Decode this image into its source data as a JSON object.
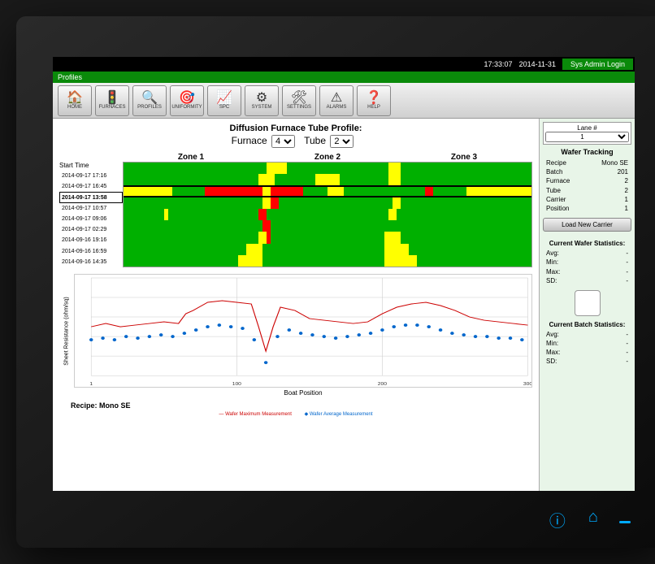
{
  "header": {
    "time": "17:33:07",
    "date": "2014-11-31",
    "login_label": "Sys Admin Login"
  },
  "green_strip": {
    "label": "Profiles"
  },
  "toolbar": [
    {
      "name": "home",
      "label": "HOME",
      "glyph": "🏠"
    },
    {
      "name": "furnaces",
      "label": "FURNACES",
      "glyph": "🚦"
    },
    {
      "name": "profiles",
      "label": "PROFILES",
      "glyph": "🔍"
    },
    {
      "name": "uniformity",
      "label": "UNIFORMITY",
      "glyph": "🎯"
    },
    {
      "name": "spc",
      "label": "SPC",
      "glyph": "📈"
    },
    {
      "name": "system",
      "label": "SYSTEM",
      "glyph": "⚙"
    },
    {
      "name": "settings",
      "label": "SETTINGS",
      "glyph": "🛠"
    },
    {
      "name": "alarms",
      "label": "ALARMS",
      "glyph": "⚠"
    },
    {
      "name": "help",
      "label": "HELP",
      "glyph": "❓"
    }
  ],
  "main": {
    "title": "Diffusion Furnace Tube Profile:",
    "furnace_label": "Furnace",
    "furnace_value": "4",
    "tube_label": "Tube",
    "tube_value": "2",
    "zones": [
      "Zone 1",
      "Zone 2",
      "Zone 3"
    ],
    "start_time_header": "Start Time",
    "times": [
      "2014-09-17 17:16",
      "2014-09-17 16:45",
      "2014-09-17 13:58",
      "2014-09-17 10:57",
      "2014-09-17 09:06",
      "2014-09-17 02:29",
      "2014-09-16 19:16",
      "2014-09-16 16:59",
      "2014-09-16 14:35"
    ],
    "selected_row_index": 2,
    "heatmap": {
      "bg_color": "#00b000",
      "colors": {
        "g": "#00b000",
        "y": "#ffff00",
        "r": "#ff0000"
      },
      "rows": [
        [
          [
            "g",
            35
          ],
          [
            "y",
            5
          ],
          [
            "g",
            25
          ],
          [
            "y",
            3
          ],
          [
            "g",
            32
          ]
        ],
        [
          [
            "g",
            33
          ],
          [
            "y",
            4
          ],
          [
            "g",
            10
          ],
          [
            "y",
            6
          ],
          [
            "g",
            12
          ],
          [
            "y",
            3
          ],
          [
            "g",
            32
          ]
        ],
        [
          [
            "y",
            12
          ],
          [
            "g",
            8
          ],
          [
            "r",
            14
          ],
          [
            "y",
            2
          ],
          [
            "r",
            8
          ],
          [
            "g",
            6
          ],
          [
            "y",
            4
          ],
          [
            "g",
            20
          ],
          [
            "r",
            2
          ],
          [
            "g",
            8
          ],
          [
            "y",
            16
          ]
        ],
        [
          [
            "g",
            34
          ],
          [
            "y",
            2
          ],
          [
            "r",
            2
          ],
          [
            "g",
            28
          ],
          [
            "y",
            2
          ],
          [
            "g",
            32
          ]
        ],
        [
          [
            "g",
            10
          ],
          [
            "y",
            1
          ],
          [
            "g",
            22
          ],
          [
            "r",
            2
          ],
          [
            "g",
            30
          ],
          [
            "y",
            2
          ],
          [
            "g",
            33
          ]
        ],
        [
          [
            "g",
            34
          ],
          [
            "r",
            2
          ],
          [
            "g",
            64
          ]
        ],
        [
          [
            "g",
            33
          ],
          [
            "y",
            2
          ],
          [
            "r",
            1
          ],
          [
            "g",
            28
          ],
          [
            "y",
            4
          ],
          [
            "g",
            32
          ]
        ],
        [
          [
            "g",
            30
          ],
          [
            "y",
            4
          ],
          [
            "g",
            30
          ],
          [
            "y",
            6
          ],
          [
            "g",
            30
          ]
        ],
        [
          [
            "g",
            28
          ],
          [
            "y",
            6
          ],
          [
            "g",
            30
          ],
          [
            "y",
            8
          ],
          [
            "g",
            28
          ]
        ]
      ]
    },
    "chart": {
      "type": "line-scatter",
      "ylabel": "Sheet Resistance (ohm/sq)",
      "xlabel": "Boat Position",
      "xlim": [
        0,
        300
      ],
      "xticks": [
        0,
        100,
        200,
        300
      ],
      "xtick_labels": [
        "1",
        "100",
        "200",
        "300"
      ],
      "ylim": [
        40,
        100
      ],
      "background_color": "#ffffff",
      "grid_color": "#cccccc",
      "series": [
        {
          "name": "Wafer Maximum Measurement",
          "kind": "line",
          "color": "#cc0000",
          "line_width": 1,
          "points": [
            [
              0,
              70
            ],
            [
              10,
              72
            ],
            [
              20,
              70
            ],
            [
              30,
              71
            ],
            [
              40,
              72
            ],
            [
              50,
              73
            ],
            [
              60,
              72
            ],
            [
              65,
              78
            ],
            [
              70,
              80
            ],
            [
              80,
              85
            ],
            [
              90,
              86
            ],
            [
              100,
              85
            ],
            [
              110,
              84
            ],
            [
              115,
              70
            ],
            [
              120,
              55
            ],
            [
              125,
              70
            ],
            [
              130,
              82
            ],
            [
              140,
              80
            ],
            [
              150,
              75
            ],
            [
              160,
              74
            ],
            [
              170,
              73
            ],
            [
              180,
              72
            ],
            [
              190,
              73
            ],
            [
              200,
              78
            ],
            [
              210,
              82
            ],
            [
              220,
              84
            ],
            [
              230,
              85
            ],
            [
              240,
              83
            ],
            [
              250,
              80
            ],
            [
              260,
              76
            ],
            [
              270,
              74
            ],
            [
              280,
              73
            ],
            [
              290,
              72
            ],
            [
              300,
              71
            ]
          ]
        },
        {
          "name": "Wafer Average Measurement",
          "kind": "scatter",
          "color": "#0066cc",
          "marker": "circle",
          "marker_size": 2,
          "points": [
            [
              0,
              62
            ],
            [
              8,
              63
            ],
            [
              16,
              62
            ],
            [
              24,
              64
            ],
            [
              32,
              63
            ],
            [
              40,
              64
            ],
            [
              48,
              65
            ],
            [
              56,
              64
            ],
            [
              64,
              66
            ],
            [
              72,
              68
            ],
            [
              80,
              70
            ],
            [
              88,
              71
            ],
            [
              96,
              70
            ],
            [
              104,
              69
            ],
            [
              112,
              62
            ],
            [
              120,
              48
            ],
            [
              128,
              64
            ],
            [
              136,
              68
            ],
            [
              144,
              66
            ],
            [
              152,
              65
            ],
            [
              160,
              64
            ],
            [
              168,
              63
            ],
            [
              176,
              64
            ],
            [
              184,
              65
            ],
            [
              192,
              66
            ],
            [
              200,
              68
            ],
            [
              208,
              70
            ],
            [
              216,
              71
            ],
            [
              224,
              71
            ],
            [
              232,
              70
            ],
            [
              240,
              68
            ],
            [
              248,
              66
            ],
            [
              256,
              65
            ],
            [
              264,
              64
            ],
            [
              272,
              64
            ],
            [
              280,
              63
            ],
            [
              288,
              63
            ],
            [
              296,
              62
            ]
          ]
        }
      ]
    },
    "recipe_label": "Recipe: Mono SE",
    "legend": {
      "max": "Wafer Maximum Measurement",
      "avg": "Wafer Average Measurement"
    }
  },
  "side": {
    "lane_label": "Lane #",
    "lane_value": "1",
    "wt_title": "Wafer Tracking",
    "wt": [
      {
        "k": "Recipe",
        "v": "Mono SE"
      },
      {
        "k": "Batch",
        "v": "201"
      },
      {
        "k": "Furnace",
        "v": "2"
      },
      {
        "k": "Tube",
        "v": "2"
      },
      {
        "k": "Carrier",
        "v": "1"
      },
      {
        "k": "Position",
        "v": "1"
      }
    ],
    "load_btn": "Load New Carrier",
    "cws_title": "Current Wafer Statistics:",
    "cws": [
      {
        "k": "Avg:",
        "v": "-"
      },
      {
        "k": "Min:",
        "v": "-"
      },
      {
        "k": "Max:",
        "v": "-"
      },
      {
        "k": "SD:",
        "v": "-"
      }
    ],
    "cbs_title": "Current Batch Statistics:",
    "cbs": [
      {
        "k": "Avg:",
        "v": "-"
      },
      {
        "k": "Min:",
        "v": "-"
      },
      {
        "k": "Max:",
        "v": "-"
      },
      {
        "k": "SD:",
        "v": "-"
      }
    ]
  }
}
